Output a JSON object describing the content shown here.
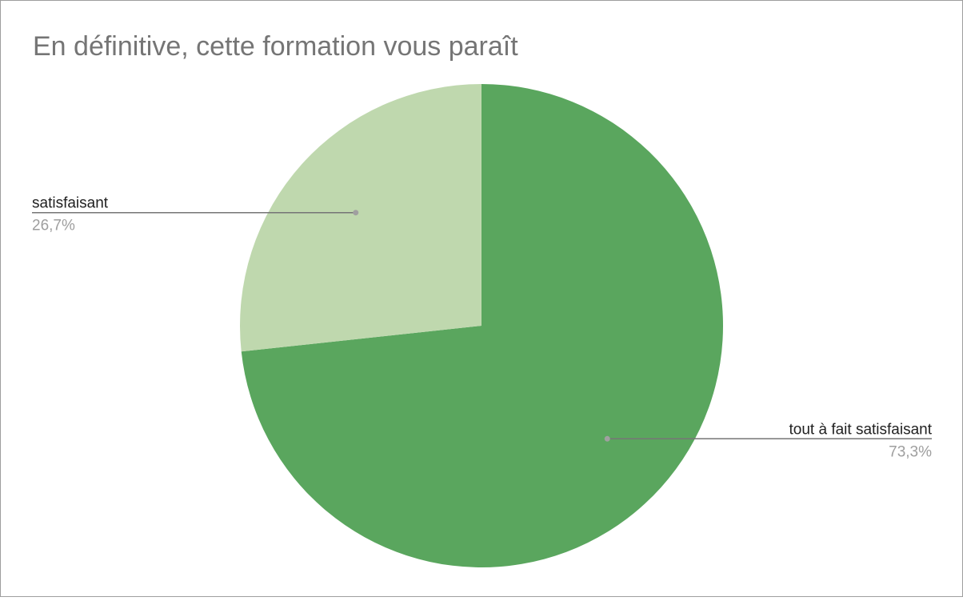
{
  "chart_data": {
    "type": "pie",
    "title": "En définitive, cette formation vous paraît",
    "slices": [
      {
        "label": "tout à fait satisfaisant",
        "value": 73.3,
        "percent_label": "73,3%",
        "color": "#5aa65e"
      },
      {
        "label": "satisfaisant",
        "value": 26.7,
        "percent_label": "26,7%",
        "color": "#bfd8ae"
      }
    ],
    "start_angle_deg": 0,
    "direction": "clockwise",
    "legend": "none",
    "label_color": "#212121",
    "percent_color": "#9e9e9e",
    "leader_color": "#757575"
  }
}
